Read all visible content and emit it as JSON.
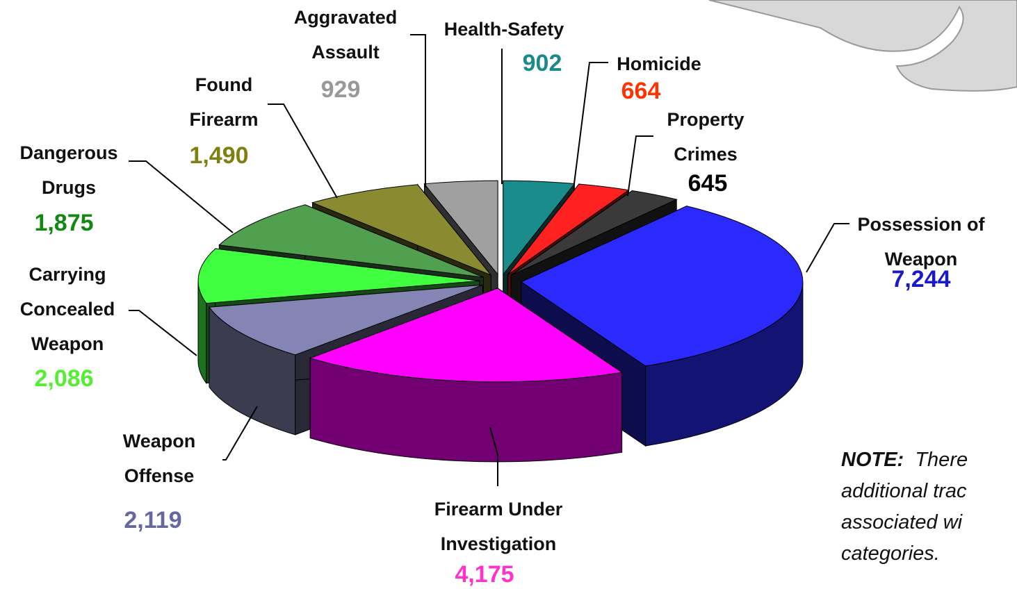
{
  "chart_data": {
    "type": "pie3d",
    "categories": [
      "Health-Safety",
      "Homicide",
      "Property Crimes",
      "Possession of Weapon",
      "Firearm Under Investigation",
      "Weapon Offense",
      "Carrying Concealed Weapon",
      "Dangerous Drugs",
      "Found Firearm",
      "Aggravated Assault"
    ],
    "values": [
      902,
      664,
      645,
      7244,
      4175,
      2119,
      2086,
      1875,
      1490,
      929
    ],
    "value_labels": [
      "902",
      "664",
      "645",
      "7,244",
      "4,175",
      "2,119",
      "2,086",
      "1,875",
      "1,490",
      "929"
    ],
    "colors": [
      "#1a8c8c",
      "#ff2020",
      "#3a3a3a",
      "#2a2aff",
      "#ff00ff",
      "#8585b5",
      "#40ff40",
      "#50a050",
      "#8a8a30",
      "#a0a0a0"
    ],
    "label_colors": [
      "#1a8a8a",
      "#ff3300",
      "#000000",
      "#1a1acc",
      "#ff33cc",
      "#6666a0",
      "#55ee33",
      "#118811",
      "#808010",
      "#999999"
    ]
  },
  "note": {
    "lead": "NOTE:",
    "lines": [
      "There",
      "additional trac",
      "associated wi",
      "categories."
    ]
  }
}
